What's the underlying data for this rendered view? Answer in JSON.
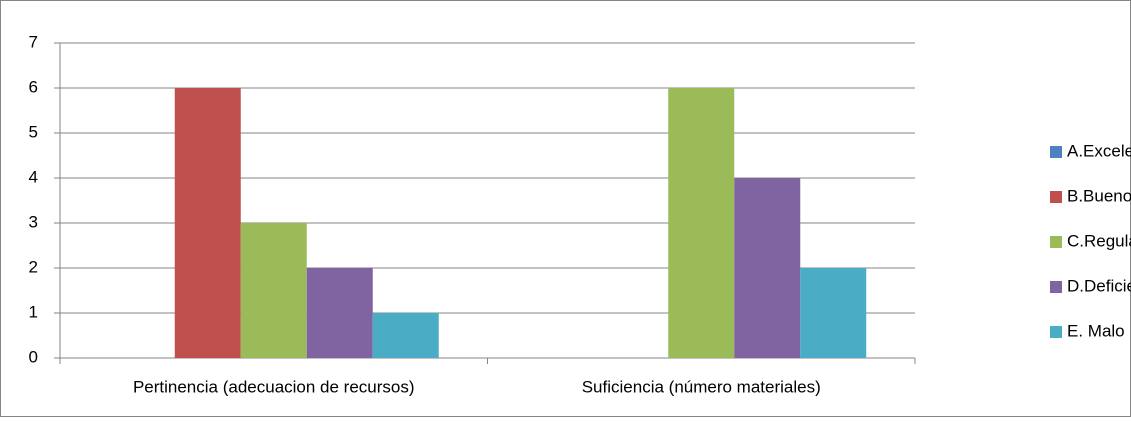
{
  "chart_data": {
    "type": "bar",
    "categories": [
      "Pertinencia (adecuacion de recursos)",
      "Suficiencia (número materiales)"
    ],
    "series": [
      {
        "name": "A.Excelente",
        "color": "#4f81bd",
        "values": [
          0,
          0
        ]
      },
      {
        "name": "B.Bueno",
        "color": "#c0504d",
        "values": [
          6,
          0
        ]
      },
      {
        "name": "C.Regular",
        "color": "#9bbb59",
        "values": [
          3,
          6
        ]
      },
      {
        "name": "D.Deficiente",
        "color": "#8064a2",
        "values": [
          2,
          4
        ]
      },
      {
        "name": "E. Malo",
        "color": "#4bacc6",
        "values": [
          1,
          2
        ]
      }
    ],
    "ylim": [
      0,
      7
    ],
    "yticks": [
      0,
      1,
      2,
      3,
      4,
      5,
      6,
      7
    ],
    "grid": true,
    "legend": "right"
  }
}
